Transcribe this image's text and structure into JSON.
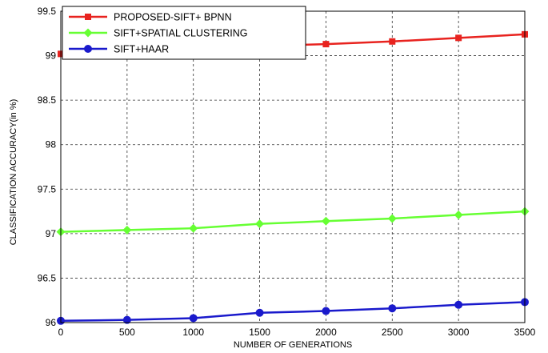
{
  "chart_data": {
    "type": "line",
    "xlabel": "NUMBER OF GENERATIONS",
    "ylabel": "CLASSIFICATION ACCURACY(in %)",
    "xlim": [
      0,
      3500
    ],
    "ylim": [
      96,
      99.5
    ],
    "x_ticks": [
      "0",
      "500",
      "1000",
      "1500",
      "2000",
      "2500",
      "3000",
      "3500"
    ],
    "y_ticks": [
      "96",
      "96.5",
      "97",
      "97.5",
      "98",
      "98.5",
      "99",
      "99.5"
    ],
    "grid": true,
    "legend_position": "top-left",
    "x": [
      0,
      500,
      1000,
      1500,
      2000,
      2500,
      3000,
      3500
    ],
    "series": [
      {
        "name": "PROPOSED-SIFT+ BPNN",
        "color": "#e8231f",
        "marker": "square",
        "values": [
          99.02,
          99.04,
          99.06,
          99.11,
          99.13,
          99.16,
          99.2,
          99.24
        ]
      },
      {
        "name": "SIFT+SPATIAL CLUSTERING",
        "color": "#66ff33",
        "marker": "diamond",
        "values": [
          97.02,
          97.04,
          97.06,
          97.11,
          97.14,
          97.17,
          97.21,
          97.25
        ]
      },
      {
        "name": "SIFT+HAAR",
        "color": "#1a1acc",
        "marker": "circle",
        "values": [
          96.02,
          96.03,
          96.05,
          96.11,
          96.13,
          96.16,
          96.2,
          96.23
        ]
      }
    ]
  }
}
